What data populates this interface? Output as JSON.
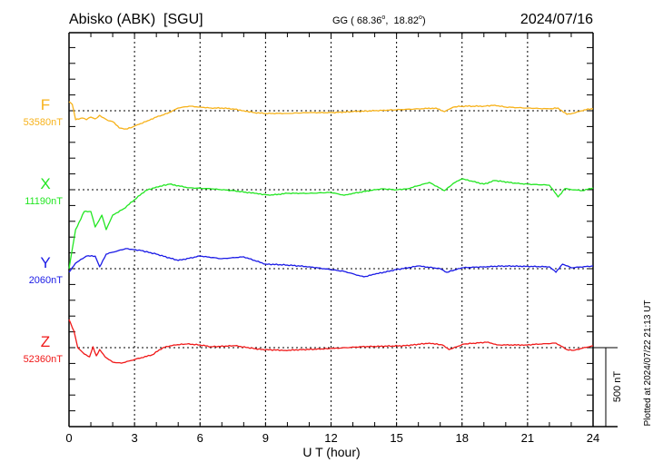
{
  "header": {
    "station": "Abisko (ABK)  [SGU]",
    "coords_prefix": "GG ( 68.36",
    "coords_lat_deg": "o",
    "coords_mid": ",  18.82",
    "coords_lon_deg": "o",
    "coords_suffix": ")",
    "date": "2024/07/16"
  },
  "footer": {
    "plotted_at": "Plotted at 2024/07/22 21:13 UT",
    "scale_label": "500 nT"
  },
  "chart_data": {
    "type": "line",
    "title": "Abisko (ABK) [SGU] 2024/07/16",
    "xlabel": "U T (hour)",
    "ylabel": "",
    "xlim": [
      0,
      24
    ],
    "xticks": [
      0,
      3,
      6,
      9,
      12,
      15,
      18,
      21,
      24
    ],
    "x_tick_labels": [
      "0",
      "3",
      "6",
      "9",
      "12",
      "15",
      "18",
      "21",
      "24"
    ],
    "scale_bar_nT": 500,
    "minor_tick_nT": 100,
    "grid": "dotted at 3-hour intervals and component baselines",
    "series": [
      {
        "name": "F",
        "baseline_label": "53580nT",
        "baseline_nT": 53580,
        "color": "#f7b21a",
        "points": [
          [
            0,
            57
          ],
          [
            0.15,
            40
          ],
          [
            0.3,
            -57
          ],
          [
            0.6,
            -46
          ],
          [
            0.8,
            -57
          ],
          [
            1.0,
            -40
          ],
          [
            1.2,
            -52
          ],
          [
            1.4,
            -29
          ],
          [
            1.6,
            -46
          ],
          [
            1.8,
            -63
          ],
          [
            2.0,
            -69
          ],
          [
            2.3,
            -109
          ],
          [
            2.6,
            -115
          ],
          [
            2.9,
            -104
          ],
          [
            3.2,
            -86
          ],
          [
            3.6,
            -63
          ],
          [
            4.0,
            -40
          ],
          [
            4.5,
            -17
          ],
          [
            5.0,
            17
          ],
          [
            5.5,
            29
          ],
          [
            6.0,
            23
          ],
          [
            6.5,
            17
          ],
          [
            7,
            17
          ],
          [
            7.5,
            12
          ],
          [
            8,
            0
          ],
          [
            8.5,
            -12
          ],
          [
            9,
            -17
          ],
          [
            10,
            -17
          ],
          [
            11,
            -12
          ],
          [
            12,
            -12
          ],
          [
            13,
            -6
          ],
          [
            14,
            0
          ],
          [
            15,
            6
          ],
          [
            16,
            12
          ],
          [
            16.8,
            17
          ],
          [
            17.2,
            -6
          ],
          [
            17.6,
            23
          ],
          [
            18,
            29
          ],
          [
            18.5,
            29
          ],
          [
            19,
            29
          ],
          [
            19.5,
            35
          ],
          [
            20,
            23
          ],
          [
            21,
            17
          ],
          [
            22,
            12
          ],
          [
            22.4,
            17
          ],
          [
            22.8,
            -23
          ],
          [
            23.2,
            -12
          ],
          [
            23.6,
            6
          ],
          [
            24,
            12
          ]
        ]
      },
      {
        "name": "X",
        "baseline_label": "11190nT",
        "baseline_nT": 11190,
        "color": "#22e622",
        "points": [
          [
            0,
            -500
          ],
          [
            0.3,
            -253
          ],
          [
            0.7,
            -138
          ],
          [
            1.0,
            -138
          ],
          [
            1.2,
            -236
          ],
          [
            1.5,
            -161
          ],
          [
            1.7,
            -253
          ],
          [
            2,
            -161
          ],
          [
            2.5,
            -121
          ],
          [
            3,
            -63
          ],
          [
            3.5,
            -6
          ],
          [
            4,
            17
          ],
          [
            4.6,
            35
          ],
          [
            5.5,
            12
          ],
          [
            6.5,
            6
          ],
          [
            7.5,
            -6
          ],
          [
            8.5,
            -23
          ],
          [
            9.2,
            -35
          ],
          [
            10,
            -23
          ],
          [
            11,
            -23
          ],
          [
            12,
            -17
          ],
          [
            12.6,
            -35
          ],
          [
            13,
            -23
          ],
          [
            14.3,
            6
          ],
          [
            15,
            0
          ],
          [
            15.5,
            6
          ],
          [
            16.5,
            46
          ],
          [
            17.2,
            -6
          ],
          [
            17.6,
            40
          ],
          [
            18,
            69
          ],
          [
            18.5,
            52
          ],
          [
            19,
            35
          ],
          [
            19.5,
            58
          ],
          [
            20.5,
            40
          ],
          [
            21,
            35
          ],
          [
            22,
            29
          ],
          [
            22.4,
            -46
          ],
          [
            22.7,
            6
          ],
          [
            23.5,
            -6
          ],
          [
            24,
            12
          ]
        ]
      },
      {
        "name": "Y",
        "baseline_label": "2060nT",
        "baseline_nT": 2060,
        "color": "#1a1ae6",
        "points": [
          [
            0,
            -23
          ],
          [
            0.3,
            35
          ],
          [
            0.8,
            80
          ],
          [
            1.2,
            80
          ],
          [
            1.4,
            12
          ],
          [
            1.7,
            92
          ],
          [
            2.0,
            104
          ],
          [
            2.6,
            127
          ],
          [
            3.3,
            115
          ],
          [
            4,
            92
          ],
          [
            5,
            52
          ],
          [
            6,
            80
          ],
          [
            7,
            63
          ],
          [
            8,
            75
          ],
          [
            9,
            29
          ],
          [
            10,
            23
          ],
          [
            11,
            12
          ],
          [
            12,
            -6
          ],
          [
            12.6,
            -17
          ],
          [
            13.5,
            -52
          ],
          [
            14,
            -35
          ],
          [
            15,
            -6
          ],
          [
            16,
            17
          ],
          [
            17,
            0
          ],
          [
            17.3,
            -23
          ],
          [
            18,
            6
          ],
          [
            19,
            12
          ],
          [
            20,
            17
          ],
          [
            22,
            12
          ],
          [
            22.3,
            -23
          ],
          [
            22.6,
            29
          ],
          [
            23,
            6
          ],
          [
            24,
            17
          ]
        ]
      },
      {
        "name": "Z",
        "baseline_label": "52360nT",
        "baseline_nT": 52360,
        "color": "#f01818",
        "points": [
          [
            0,
            178
          ],
          [
            0.23,
            104
          ],
          [
            0.4,
            0
          ],
          [
            0.7,
            -40
          ],
          [
            0.94,
            -58
          ],
          [
            1.1,
            6
          ],
          [
            1.25,
            -52
          ],
          [
            1.4,
            -12
          ],
          [
            1.65,
            -58
          ],
          [
            2.0,
            -92
          ],
          [
            2.4,
            -98
          ],
          [
            3,
            -75
          ],
          [
            3.8,
            -46
          ],
          [
            4.3,
            0
          ],
          [
            4.8,
            17
          ],
          [
            5.4,
            23
          ],
          [
            6,
            17
          ],
          [
            6.5,
            6
          ],
          [
            7.6,
            12
          ],
          [
            8.8,
            -12
          ],
          [
            9.9,
            -17
          ],
          [
            12,
            -6
          ],
          [
            13.4,
            6
          ],
          [
            15.4,
            12
          ],
          [
            16.5,
            29
          ],
          [
            17.1,
            17
          ],
          [
            17.4,
            -12
          ],
          [
            18.1,
            23
          ],
          [
            19.2,
            35
          ],
          [
            19.6,
            17
          ],
          [
            20.9,
            17
          ],
          [
            22.3,
            29
          ],
          [
            22.8,
            -12
          ],
          [
            23.1,
            -17
          ],
          [
            24,
            12
          ]
        ]
      }
    ]
  }
}
